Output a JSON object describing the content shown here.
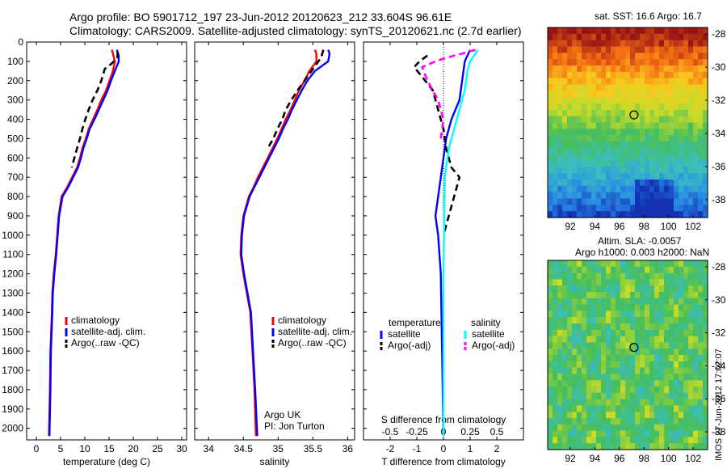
{
  "header": {
    "line1": "Argo profile: BO 5901712_197 23-Jun-2012 20120623_212 33.604S 96.61E",
    "line2": "Climatology: CARS2009. Satellite-adjusted climatology: synTS_20120621.nc (2.7d earlier)"
  },
  "colors": {
    "climatology": "#ff0000",
    "satellite": "#0000ff",
    "argo": "#000000",
    "sal_satellite": "#00ffff",
    "sal_argo": "#ff00ff"
  },
  "chart_data": [
    {
      "type": "line",
      "xlabel": "temperature (deg C)",
      "xticks": [
        0,
        5,
        10,
        15,
        20,
        25,
        30
      ],
      "xlim": [
        -2,
        31
      ],
      "yticks": [
        0,
        100,
        200,
        300,
        400,
        500,
        600,
        700,
        800,
        900,
        1000,
        1100,
        1200,
        1300,
        1400,
        1500,
        1600,
        1700,
        1800,
        1900,
        2000
      ],
      "ylim": [
        0,
        2060
      ],
      "legend": [
        "climatology",
        "satellite-adj. clim.",
        "Argo(..raw -QC)"
      ],
      "series": [
        {
          "name": "climatology",
          "color": "#ff0000",
          "style": "solid",
          "x": [
            15.6,
            15.9,
            16.2,
            15.8,
            15.1,
            14.4,
            13.4,
            12.6,
            11.7,
            10.8,
            10.2,
            9.5,
            9.0,
            8.4,
            7.4,
            6.4,
            5.2,
            4.6,
            4.3,
            4.0,
            3.6,
            3.3,
            3.2,
            2.9,
            2.8,
            2.6
          ],
          "y": [
            40,
            70,
            100,
            150,
            200,
            250,
            300,
            350,
            400,
            450,
            500,
            550,
            600,
            650,
            700,
            750,
            800,
            900,
            1000,
            1100,
            1200,
            1300,
            1400,
            1600,
            1800,
            2040
          ]
        },
        {
          "name": "satellite-adj. clim.",
          "color": "#0000ff",
          "style": "solid",
          "x": [
            16.6,
            17.0,
            17.0,
            16.2,
            15.4,
            14.7,
            13.8,
            12.9,
            12.0,
            11.0,
            10.4,
            9.7,
            9.2,
            8.6,
            7.6,
            6.6,
            5.4,
            4.7,
            4.4,
            4.1,
            3.7,
            3.4,
            3.3,
            3.0,
            2.9,
            2.7
          ],
          "y": [
            40,
            70,
            100,
            150,
            200,
            250,
            300,
            350,
            400,
            450,
            500,
            550,
            600,
            650,
            700,
            750,
            800,
            900,
            1000,
            1100,
            1200,
            1300,
            1400,
            1600,
            1800,
            2040
          ]
        },
        {
          "name": "Argo(..raw -QC)",
          "color": "#000000",
          "style": "dashed",
          "x": [
            16.8,
            16.7,
            15.6,
            14.1,
            13.4,
            12.6,
            11.6,
            10.8,
            10.1,
            9.5,
            9.0,
            8.4,
            7.3
          ],
          "y": [
            50,
            80,
            110,
            140,
            200,
            250,
            300,
            350,
            400,
            450,
            500,
            550,
            650
          ]
        }
      ]
    },
    {
      "type": "line",
      "xlabel": "salinity",
      "xticks": [
        34,
        34.5,
        35,
        35.5,
        36
      ],
      "xlim": [
        33.8,
        36.1
      ],
      "yticks": [
        0,
        100,
        200,
        300,
        400,
        500,
        600,
        700,
        800,
        900,
        1000,
        1100,
        1200,
        1300,
        1400,
        1500,
        1600,
        1700,
        1800,
        1900,
        2000
      ],
      "ylim": [
        0,
        2060
      ],
      "legend": [
        "climatology",
        "satellite-adj. clim.",
        "Argo(..raw -QC)"
      ],
      "annotation": [
        "Argo UK",
        "PI: Jon Turton"
      ],
      "series": [
        {
          "name": "climatology",
          "color": "#ff0000",
          "style": "solid",
          "x": [
            35.53,
            35.55,
            35.55,
            35.45,
            35.38,
            35.3,
            35.24,
            35.18,
            35.11,
            35.05,
            34.99,
            34.92,
            34.85,
            34.78,
            34.71,
            34.65,
            34.58,
            34.5,
            34.47,
            34.46,
            34.5,
            34.55,
            34.6,
            34.63,
            34.66,
            34.68
          ],
          "y": [
            40,
            60,
            100,
            150,
            200,
            250,
            300,
            350,
            400,
            450,
            500,
            550,
            600,
            650,
            700,
            750,
            800,
            900,
            1000,
            1100,
            1200,
            1300,
            1400,
            1600,
            1800,
            2040
          ]
        },
        {
          "name": "satellite-adj. clim.",
          "color": "#0000ff",
          "style": "solid",
          "x": [
            35.72,
            35.74,
            35.72,
            35.53,
            35.42,
            35.34,
            35.27,
            35.2,
            35.14,
            35.07,
            35.01,
            34.94,
            34.87,
            34.8,
            34.73,
            34.66,
            34.59,
            34.51,
            34.48,
            34.47,
            34.51,
            34.56,
            34.61,
            34.64,
            34.67,
            34.7
          ],
          "y": [
            40,
            60,
            100,
            150,
            200,
            250,
            300,
            350,
            400,
            450,
            500,
            550,
            600,
            650,
            700,
            750,
            800,
            900,
            1000,
            1100,
            1200,
            1300,
            1400,
            1600,
            1800,
            2040
          ]
        },
        {
          "name": "Argo(..raw -QC)",
          "color": "#000000",
          "style": "dashed",
          "x": [
            35.65,
            35.62,
            35.52,
            35.38,
            35.28,
            35.19,
            35.11,
            35.06,
            34.99,
            34.93,
            34.85
          ],
          "y": [
            40,
            80,
            130,
            200,
            250,
            300,
            350,
            400,
            450,
            500,
            550
          ]
        }
      ]
    },
    {
      "type": "line",
      "xlabel": "T difference from climatology",
      "xticks": [
        -2,
        -1,
        0,
        1,
        2
      ],
      "xlim": [
        -3,
        3
      ],
      "top_label": "S difference from climatology",
      "top_ticks": [
        "-0.5",
        "-0.25",
        "0",
        "0.25",
        "0.5"
      ],
      "yticks": [
        0,
        100,
        200,
        300,
        400,
        500,
        600,
        700,
        800,
        900,
        1000,
        1100,
        1200,
        1300,
        1400,
        1500,
        1600,
        1700,
        1800,
        1900,
        2000
      ],
      "ylim": [
        0,
        2060
      ],
      "legend_headers": [
        "temperature",
        "salinity"
      ],
      "legend": [
        "satellite",
        "Argo(-adj)",
        "satellite",
        "Argo(-adj)"
      ],
      "series": [
        {
          "name": "satellite",
          "color": "#0000ff",
          "style": "solid",
          "x": [
            1.0,
            0.9,
            0.8,
            0.7,
            0.6,
            0.3,
            0.1,
            0.0,
            -0.1,
            -0.2,
            -0.3,
            -0.2,
            -0.1,
            0.0
          ],
          "y": [
            40,
            70,
            100,
            200,
            300,
            400,
            500,
            600,
            700,
            800,
            900,
            1000,
            1200,
            2040
          ]
        },
        {
          "name": "Argo(-adj)",
          "color": "#000000",
          "style": "dashed",
          "x": [
            -0.6,
            -0.9,
            -1.1,
            -0.8,
            -0.4,
            -0.2,
            0.0,
            0.1,
            0.3,
            0.6,
            0.4,
            0.2,
            0.0
          ],
          "y": [
            70,
            100,
            130,
            180,
            250,
            350,
            450,
            550,
            650,
            700,
            800,
            900,
            1000
          ]
        },
        {
          "name": "satellite",
          "color": "#00ffff",
          "style": "solid",
          "x": [
            1.3,
            1.1,
            1.0,
            0.9,
            0.8,
            0.6,
            0.4,
            0.2,
            0.05,
            0.0,
            0.0
          ],
          "y": [
            40,
            80,
            100,
            150,
            250,
            350,
            450,
            550,
            700,
            1200,
            2040
          ]
        },
        {
          "name": "Argo(-adj)",
          "color": "#ff00ff",
          "style": "dashed",
          "x": [
            1.2,
            0.7,
            0.4,
            -0.3,
            -0.8,
            -0.6,
            -0.2,
            0.0,
            -0.1
          ],
          "y": [
            40,
            60,
            70,
            100,
            130,
            200,
            300,
            400,
            500
          ]
        }
      ]
    }
  ],
  "maps": [
    {
      "title": "sat. SST: 16.6 Argo: 16.7",
      "xticks": [
        "92",
        "94",
        "96",
        "98",
        "100",
        "102"
      ],
      "yticks": [
        "-28",
        "-30",
        "-32",
        "-34",
        "-36",
        "-38"
      ],
      "colors": "sst"
    },
    {
      "title": "Altim. SLA: -0.0057",
      "title2": "Argo h1000: 0.003 h2000: NaN",
      "xticks": [
        "92",
        "94",
        "96",
        "98",
        "100",
        "102"
      ],
      "yticks": [
        "-28",
        "-30",
        "-32",
        "-34",
        "-36",
        "-38"
      ],
      "colors": "sla"
    }
  ],
  "side_label": "IMOS 27-Jun-2012 17:02:07"
}
